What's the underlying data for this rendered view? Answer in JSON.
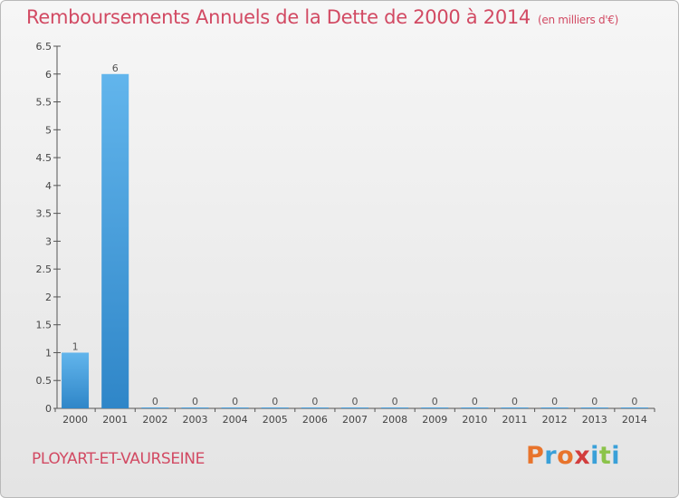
{
  "title": "Remboursements Annuels de la Dette de 2000 à 2014",
  "subtitle": "(en milliers d'€)",
  "location": "PLOYART-ET-VAURSEINE",
  "logo": {
    "text": "Proxiti",
    "colors": [
      "#e8742c",
      "#3aa0d8",
      "#e8742c",
      "#d23d3d",
      "#3aa0d8",
      "#8bc34a",
      "#3aa0d8"
    ]
  },
  "colors": {
    "title": "#d24a63",
    "bar_top": "#62b5ec",
    "bar_bottom": "#2f86c8"
  },
  "chart_data": {
    "type": "bar",
    "categories": [
      "2000",
      "2001",
      "2002",
      "2003",
      "2004",
      "2005",
      "2006",
      "2007",
      "2008",
      "2009",
      "2010",
      "2011",
      "2012",
      "2013",
      "2014"
    ],
    "values": [
      1,
      6,
      0,
      0,
      0,
      0,
      0,
      0,
      0,
      0,
      0,
      0,
      0,
      0,
      0
    ],
    "ylim": [
      0,
      6.5
    ],
    "yticks": [
      "0",
      "0.5",
      "1",
      "1.5",
      "2",
      "2.5",
      "3",
      "3.5",
      "4",
      "4.5",
      "5",
      "5.5",
      "6",
      "6.5"
    ],
    "xlabel": "",
    "ylabel": "",
    "grid": false
  }
}
